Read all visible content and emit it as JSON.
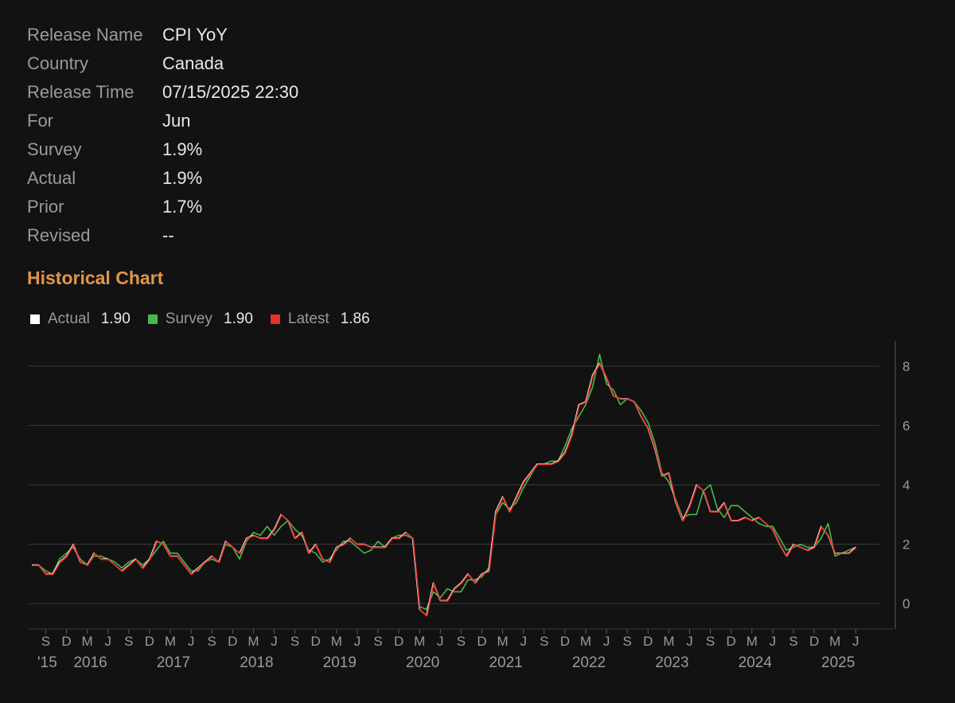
{
  "info": [
    {
      "label": "Release Name",
      "value": "CPI YoY"
    },
    {
      "label": "Country",
      "value": "Canada"
    },
    {
      "label": "Release Time",
      "value": "07/15/2025 22:30"
    },
    {
      "label": "For",
      "value": "Jun"
    },
    {
      "label": "Survey",
      "value": "1.9%"
    },
    {
      "label": "Actual",
      "value": "1.9%"
    },
    {
      "label": "Prior",
      "value": "1.7%"
    },
    {
      "label": "Revised",
      "value": "--"
    }
  ],
  "section_title": "Historical Chart",
  "legend": [
    {
      "name": "Actual",
      "value": "1.90",
      "color": "#ffffff"
    },
    {
      "name": "Survey",
      "value": "1.90",
      "color": "#4cb648"
    },
    {
      "name": "Latest",
      "value": "1.86",
      "color": "#e8302a"
    }
  ],
  "chart_data": {
    "type": "line",
    "title": "",
    "xlabel": "",
    "ylabel": "",
    "x_start": "2015-07",
    "x_end": "2025-06",
    "ylim": [
      -0.8,
      8.8
    ],
    "y_ticks": [
      0,
      2,
      4,
      6,
      8
    ],
    "grid": true,
    "y_axis_position": "right",
    "x_tick_months": [
      "S",
      "D",
      "M",
      "J",
      "S",
      "D",
      "M",
      "J",
      "S",
      "D",
      "M",
      "J",
      "S",
      "D",
      "M",
      "J",
      "S",
      "D",
      "M",
      "J",
      "S",
      "D",
      "M",
      "J",
      "S",
      "D",
      "M",
      "J",
      "S",
      "D",
      "M",
      "J",
      "S",
      "D",
      "M",
      "J",
      "S",
      "D",
      "M",
      "J"
    ],
    "x_year_labels": [
      "'15",
      "2016",
      "2017",
      "2018",
      "2019",
      "2020",
      "2021",
      "2022",
      "2023",
      "2024",
      "2025"
    ],
    "series": [
      {
        "name": "Actual",
        "color": "#ffffff",
        "values": [
          1.3,
          1.3,
          1.0,
          1.0,
          1.4,
          1.6,
          2.0,
          1.4,
          1.3,
          1.7,
          1.5,
          1.5,
          1.3,
          1.1,
          1.3,
          1.5,
          1.2,
          1.5,
          2.1,
          2.0,
          1.6,
          1.6,
          1.3,
          1.0,
          1.2,
          1.4,
          1.6,
          1.4,
          2.1,
          1.9,
          1.7,
          2.2,
          2.3,
          2.2,
          2.2,
          2.5,
          3.0,
          2.8,
          2.2,
          2.4,
          1.7,
          2.0,
          1.5,
          1.4,
          1.9,
          2.0,
          2.2,
          2.0,
          2.0,
          1.9,
          1.9,
          1.9,
          2.2,
          2.2,
          2.4,
          2.2,
          -0.2,
          -0.4,
          0.7,
          0.1,
          0.1,
          0.5,
          0.7,
          1.0,
          0.7,
          1.0,
          1.1,
          3.1,
          3.6,
          3.1,
          3.6,
          4.1,
          4.4,
          4.7,
          4.7,
          4.7,
          4.8,
          5.1,
          5.7,
          6.7,
          6.8,
          7.7,
          8.1,
          7.6,
          7.0,
          6.9,
          6.9,
          6.8,
          6.3,
          5.9,
          5.2,
          4.3,
          4.4,
          3.4,
          2.8,
          3.3,
          4.0,
          3.8,
          3.1,
          3.1,
          3.4,
          2.8,
          2.8,
          2.9,
          2.8,
          2.9,
          2.7,
          2.5,
          2.0,
          1.6,
          2.0,
          1.9,
          1.8,
          1.9,
          2.6,
          2.3,
          1.7,
          1.7,
          1.7,
          1.9
        ]
      },
      {
        "name": "Survey",
        "color": "#4cb648",
        "values": [
          1.3,
          1.3,
          1.1,
          1.0,
          1.5,
          1.7,
          1.9,
          1.5,
          1.3,
          1.6,
          1.6,
          1.5,
          1.4,
          1.2,
          1.4,
          1.5,
          1.3,
          1.5,
          1.8,
          2.1,
          1.7,
          1.7,
          1.4,
          1.1,
          1.1,
          1.4,
          1.5,
          1.4,
          2.0,
          1.9,
          1.5,
          2.1,
          2.4,
          2.3,
          2.6,
          2.3,
          2.6,
          2.8,
          2.5,
          2.3,
          1.8,
          1.7,
          1.4,
          1.5,
          1.8,
          2.1,
          2.1,
          1.9,
          1.7,
          1.8,
          2.1,
          1.9,
          2.2,
          2.3,
          2.3,
          2.2,
          -0.1,
          -0.2,
          0.4,
          0.2,
          0.5,
          0.4,
          0.4,
          0.8,
          0.8,
          0.9,
          1.2,
          3.0,
          3.4,
          3.2,
          3.4,
          3.9,
          4.3,
          4.7,
          4.7,
          4.8,
          4.8,
          5.3,
          5.9,
          6.3,
          6.7,
          7.3,
          8.4,
          7.4,
          7.2,
          6.7,
          6.9,
          6.8,
          6.5,
          6.1,
          5.4,
          4.4,
          4.1,
          3.5,
          2.9,
          3.0,
          3.0,
          3.8,
          4.0,
          3.2,
          2.9,
          3.3,
          3.3,
          3.1,
          2.9,
          2.7,
          2.6,
          2.6,
          2.2,
          1.8,
          1.9,
          2.0,
          1.9,
          1.9,
          2.2,
          2.7,
          1.6,
          1.7,
          1.8,
          1.9
        ]
      }
    ]
  }
}
